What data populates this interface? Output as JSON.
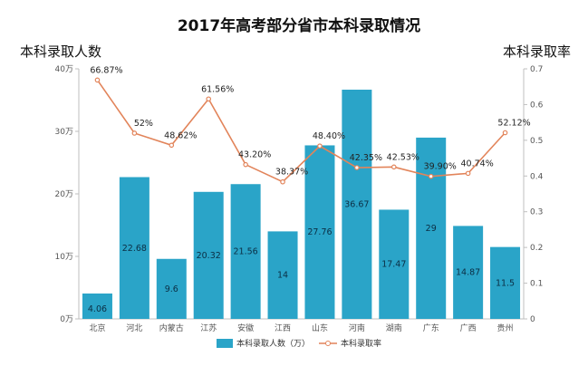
{
  "chart_data": {
    "type": "bar",
    "title": "2017年高考部分省市本科录取情况",
    "ylabel_left": "本科录取人数",
    "ylabel_right": "本科录取率",
    "categories": [
      "北京",
      "河北",
      "内蒙古",
      "江苏",
      "安徽",
      "江西",
      "山东",
      "河南",
      "湖南",
      "广东",
      "广西",
      "贵州"
    ],
    "series": [
      {
        "name": "本科录取人数（万）",
        "type": "bar",
        "axis": "left",
        "values": [
          4.06,
          22.68,
          9.6,
          20.32,
          21.56,
          14,
          27.76,
          36.67,
          17.47,
          29,
          14.87,
          11.5
        ],
        "labels": [
          "4.06",
          "22.68",
          "9.6",
          "20.32",
          "21.56",
          "14",
          "27.76",
          "36.67",
          "17.47",
          "29",
          "14.87",
          "11.5"
        ]
      },
      {
        "name": "本科录取率",
        "type": "line",
        "axis": "right",
        "values": [
          0.6687,
          0.52,
          0.4862,
          0.6156,
          0.432,
          0.3837,
          0.484,
          0.4235,
          0.4253,
          0.399,
          0.4074,
          0.5212
        ],
        "labels": [
          "66.87%",
          "52%",
          "48.62%",
          "61.56%",
          "43.20%",
          "38.37%",
          "48.40%",
          "42.35%",
          "42.53%",
          "39.90%",
          "40.74%",
          "52.12%"
        ]
      }
    ],
    "y_left": {
      "range": [
        0,
        40
      ],
      "ticks": [
        0,
        10,
        20,
        30,
        40
      ],
      "tick_labels": [
        "0万",
        "10万",
        "20万",
        "30万",
        "40万"
      ]
    },
    "y_right": {
      "range": [
        0,
        0.7
      ],
      "ticks": [
        0,
        0.1,
        0.2,
        0.3,
        0.4,
        0.5,
        0.6,
        0.7
      ],
      "tick_labels": [
        "0",
        "0.1",
        "0.2",
        "0.3",
        "0.4",
        "0.5",
        "0.6",
        "0.7"
      ]
    },
    "grid": false,
    "legend_position": "bottom",
    "colors": {
      "bar": "#2aa4c8",
      "line": "#e2845a"
    }
  }
}
